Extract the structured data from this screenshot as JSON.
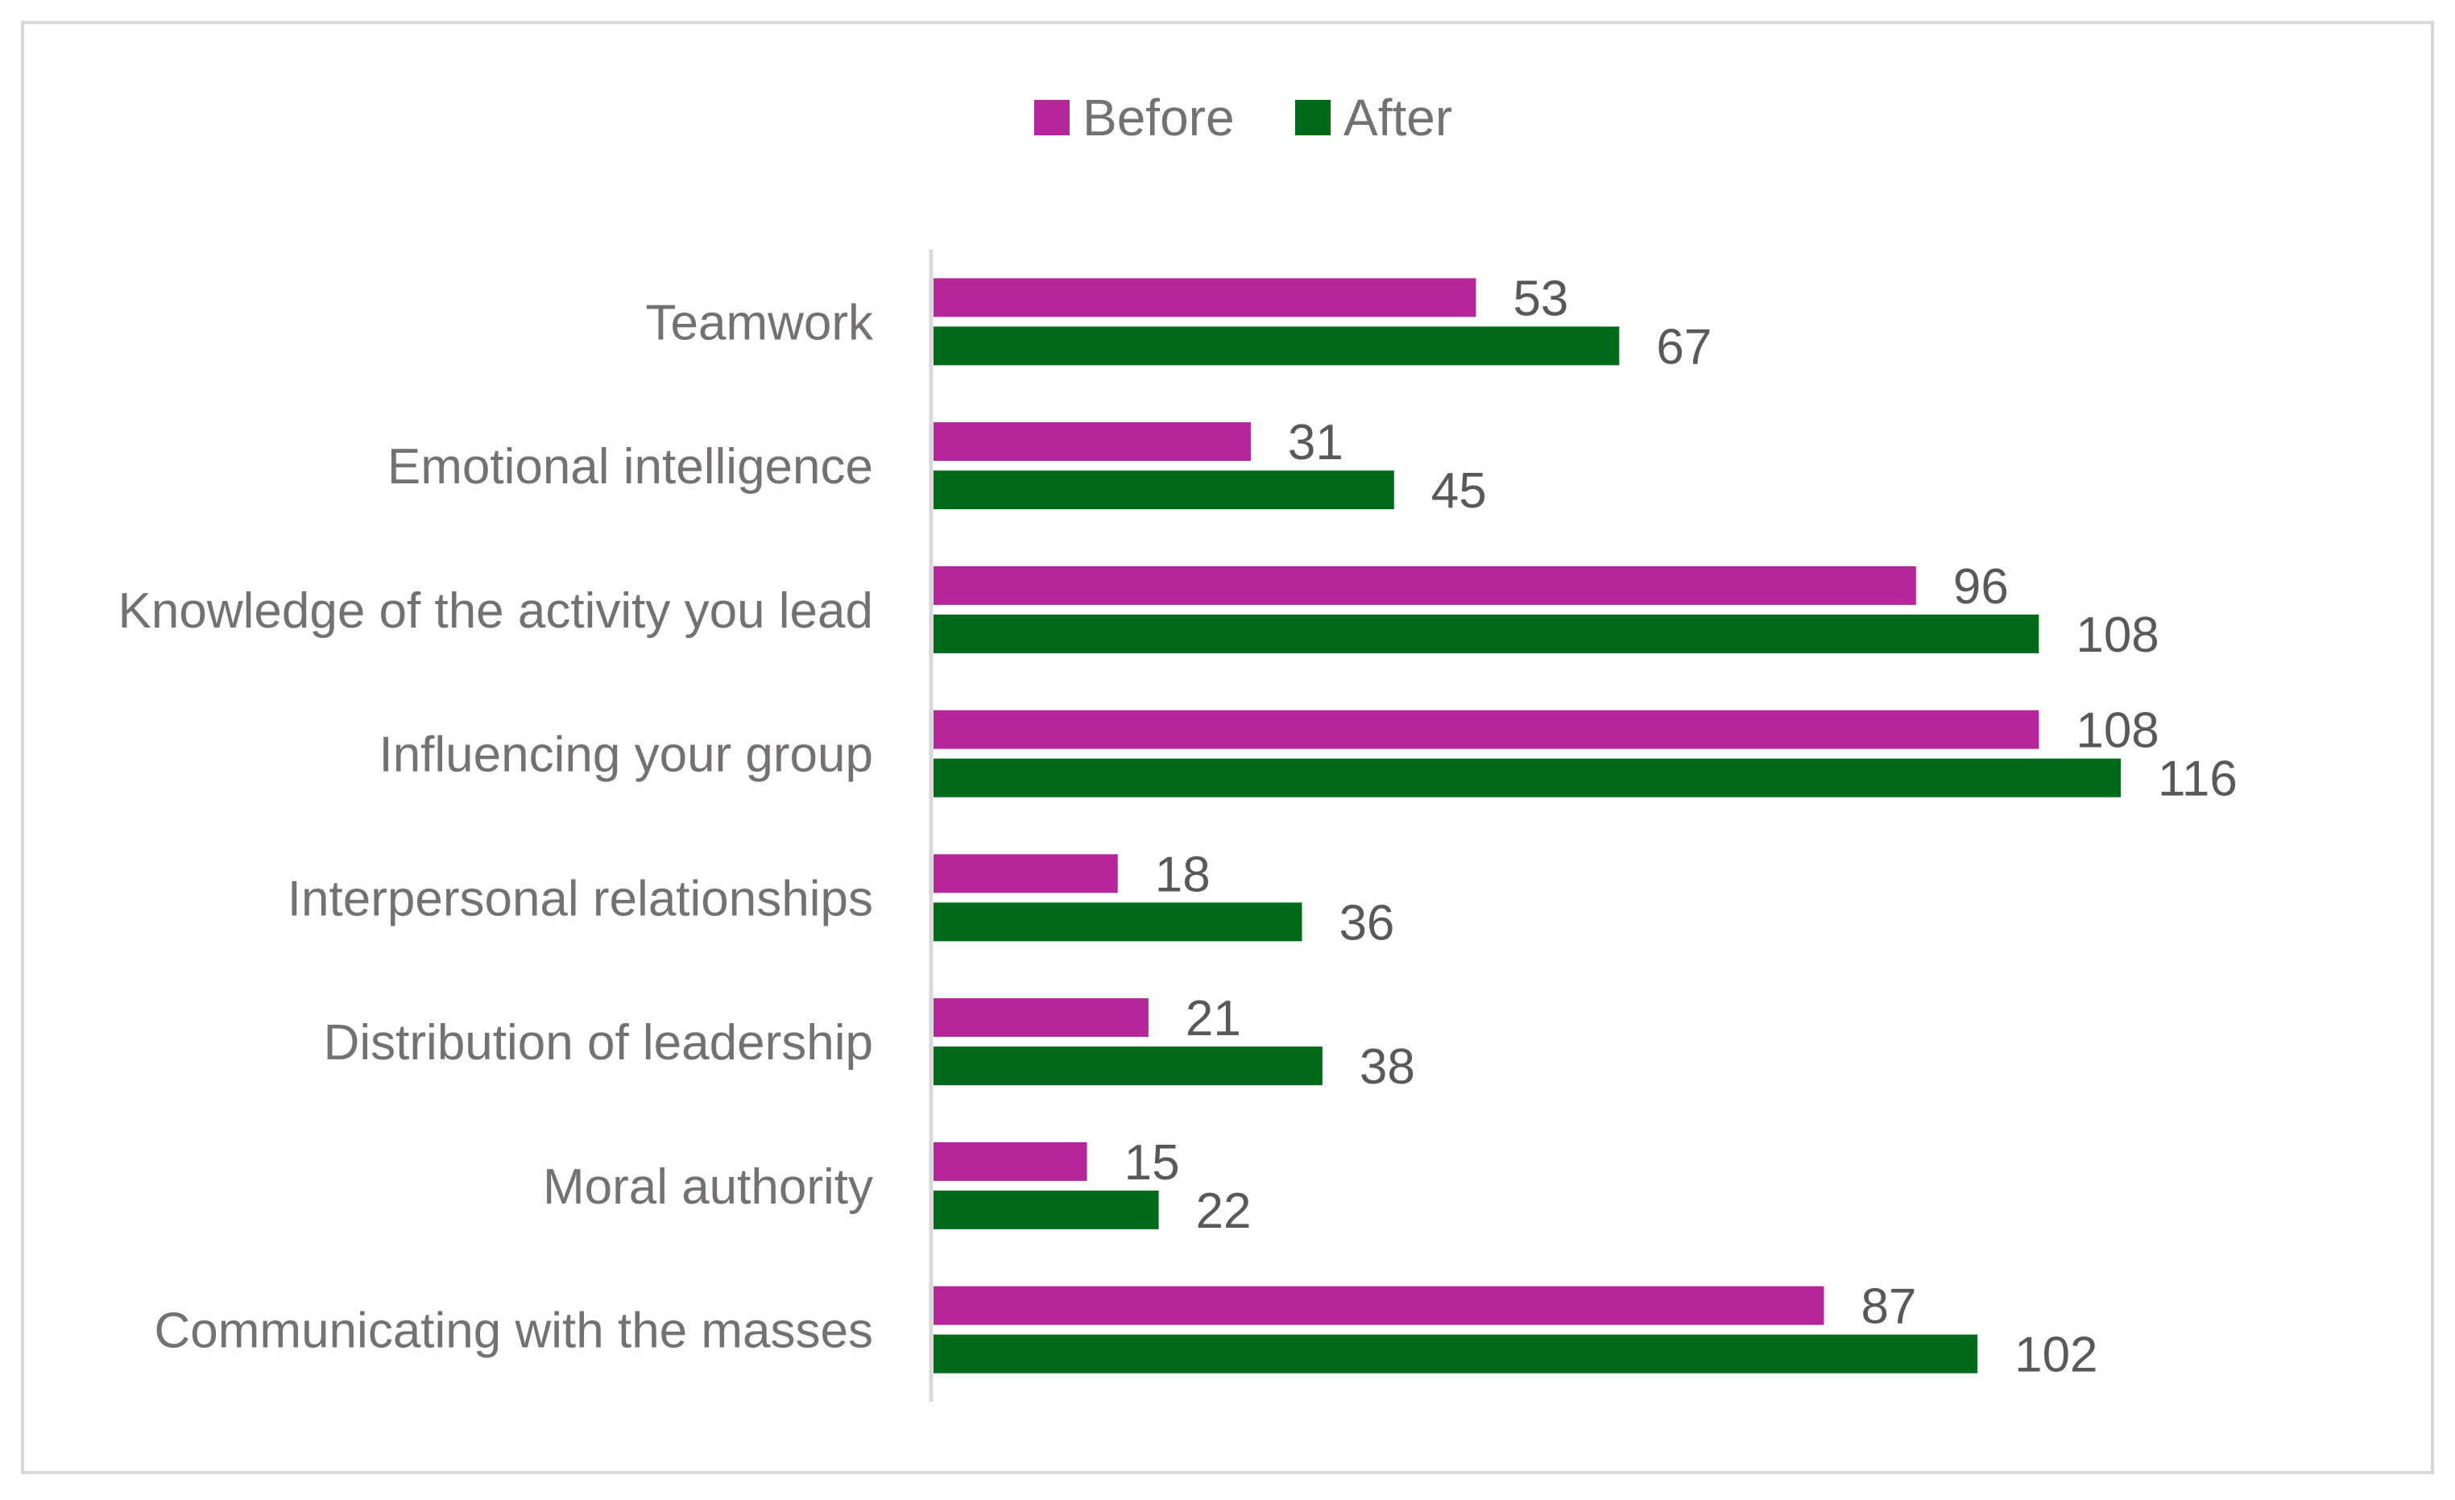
{
  "chart_data": {
    "type": "bar",
    "orientation": "horizontal",
    "title": "",
    "xlabel": "",
    "ylabel": "",
    "categories": [
      "Teamwork",
      "Emotional intelligence",
      "Knowledge of the activity you lead",
      "Influencing your group",
      "Interpersonal relationships",
      "Distribution of leadership",
      "Moral authority",
      "Communicating with the masses"
    ],
    "series": [
      {
        "name": "Before",
        "color": "#b5269b",
        "values": [
          53,
          31,
          96,
          108,
          18,
          21,
          15,
          87
        ]
      },
      {
        "name": "After",
        "color": "#006a1b",
        "values": [
          67,
          45,
          108,
          116,
          36,
          38,
          22,
          102
        ]
      }
    ],
    "xlim": [
      0,
      116
    ],
    "grid": false,
    "legend_position": "top-center",
    "data_labels": true
  }
}
